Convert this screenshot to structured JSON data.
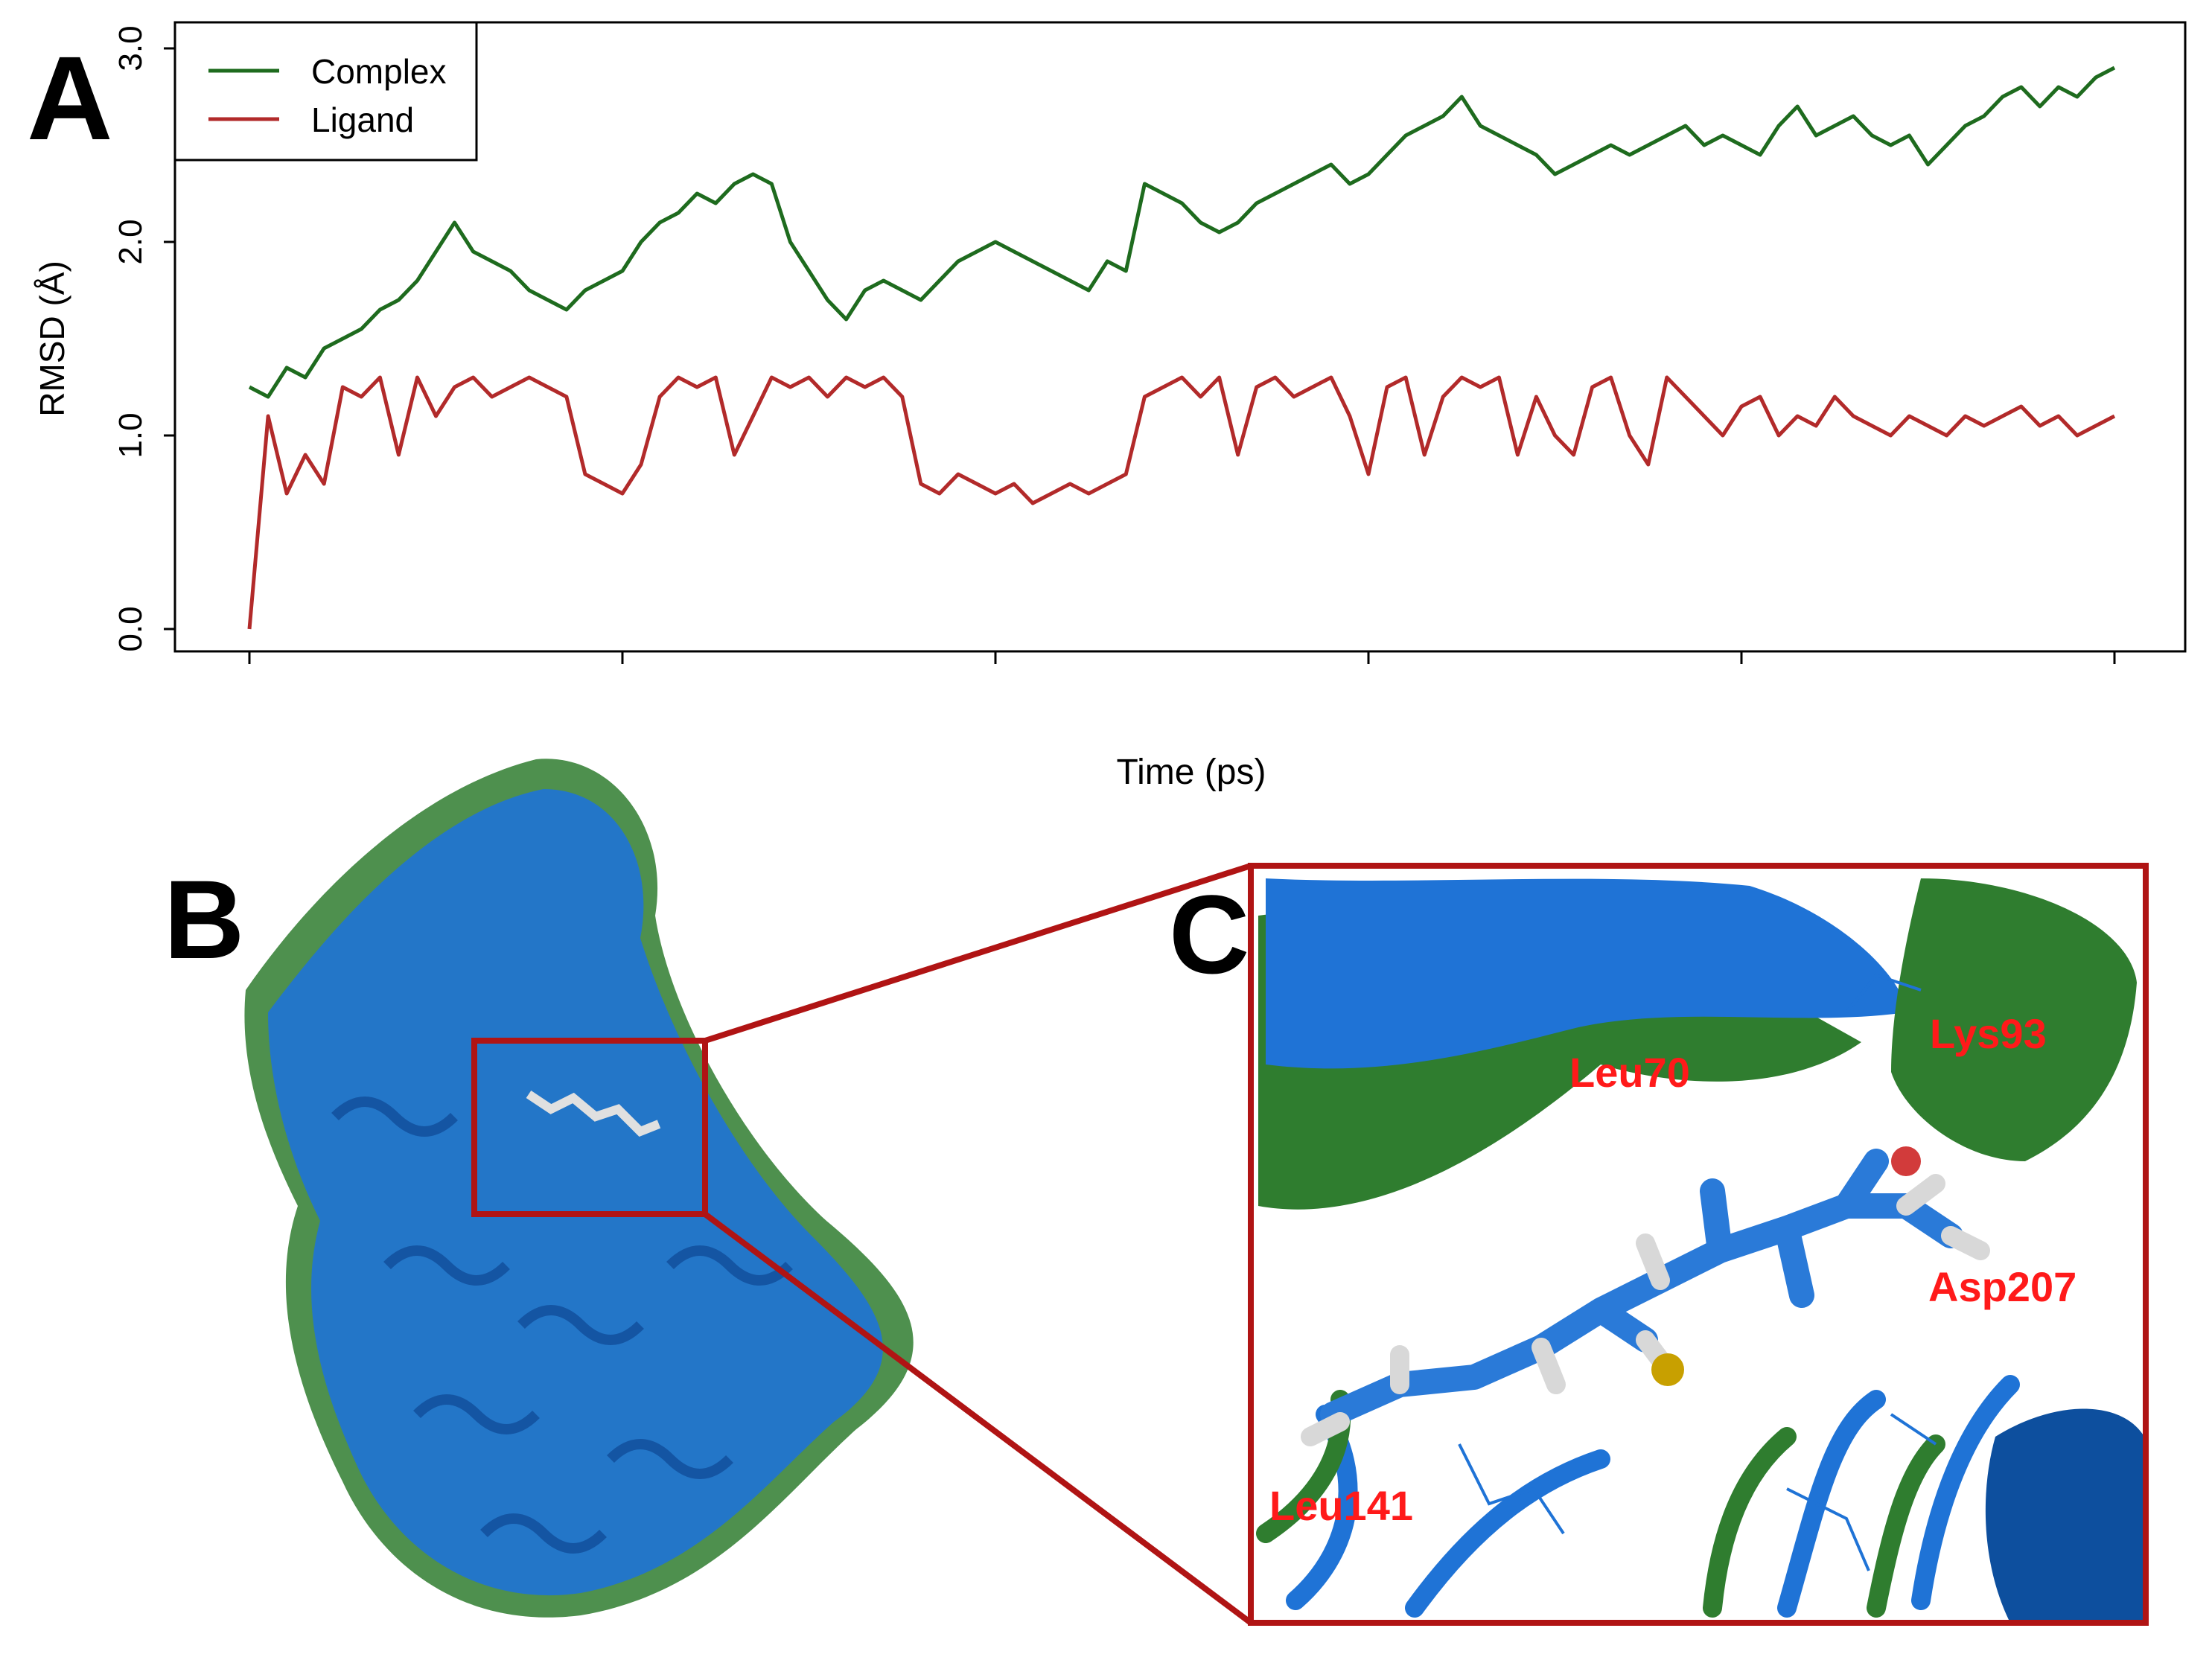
{
  "panels": {
    "a": "A",
    "b": "B",
    "c": "C"
  },
  "chart_data": {
    "type": "line",
    "xlabel": "Time (ps)",
    "ylabel": "RMSD (Å)",
    "xlim": [
      0,
      5000
    ],
    "ylim": [
      0.0,
      3.0
    ],
    "x_ticks": [
      "0",
      "1000",
      "2000",
      "3000",
      "4000",
      "5000"
    ],
    "y_ticks": [
      "0.0",
      "1.0",
      "2.0",
      "3.0"
    ],
    "grid": false,
    "legend_position": "top-left",
    "series": [
      {
        "name": "Complex",
        "color": "#1e6b1e",
        "x": [
          0,
          50,
          100,
          150,
          200,
          250,
          300,
          350,
          400,
          450,
          500,
          550,
          600,
          650,
          700,
          750,
          800,
          850,
          900,
          950,
          1000,
          1050,
          1100,
          1150,
          1200,
          1250,
          1300,
          1350,
          1400,
          1450,
          1500,
          1550,
          1600,
          1650,
          1700,
          1750,
          1800,
          1850,
          1900,
          1950,
          2000,
          2050,
          2100,
          2150,
          2200,
          2250,
          2300,
          2350,
          2400,
          2450,
          2500,
          2550,
          2600,
          2650,
          2700,
          2750,
          2800,
          2850,
          2900,
          2950,
          3000,
          3050,
          3100,
          3150,
          3200,
          3250,
          3300,
          3350,
          3400,
          3450,
          3500,
          3550,
          3600,
          3650,
          3700,
          3750,
          3800,
          3850,
          3900,
          3950,
          4000,
          4050,
          4100,
          4150,
          4200,
          4250,
          4300,
          4350,
          4400,
          4450,
          4500,
          4550,
          4600,
          4650,
          4700,
          4750,
          4800,
          4850,
          4900,
          4950,
          5000
        ],
        "y": [
          1.25,
          1.2,
          1.35,
          1.3,
          1.45,
          1.5,
          1.55,
          1.65,
          1.7,
          1.8,
          1.95,
          2.1,
          1.95,
          1.9,
          1.85,
          1.75,
          1.7,
          1.65,
          1.75,
          1.8,
          1.85,
          2.0,
          2.1,
          2.15,
          2.25,
          2.2,
          2.3,
          2.35,
          2.3,
          2.0,
          1.85,
          1.7,
          1.6,
          1.75,
          1.8,
          1.75,
          1.7,
          1.8,
          1.9,
          1.95,
          2.0,
          1.95,
          1.9,
          1.85,
          1.8,
          1.75,
          1.9,
          1.85,
          2.3,
          2.25,
          2.2,
          2.1,
          2.05,
          2.1,
          2.2,
          2.25,
          2.3,
          2.35,
          2.4,
          2.3,
          2.35,
          2.45,
          2.55,
          2.6,
          2.65,
          2.75,
          2.6,
          2.55,
          2.5,
          2.45,
          2.35,
          2.4,
          2.45,
          2.5,
          2.45,
          2.5,
          2.55,
          2.6,
          2.5,
          2.55,
          2.5,
          2.45,
          2.6,
          2.7,
          2.55,
          2.6,
          2.65,
          2.55,
          2.5,
          2.55,
          2.4,
          2.5,
          2.6,
          2.65,
          2.75,
          2.8,
          2.7,
          2.8,
          2.75,
          2.85,
          2.9
        ]
      },
      {
        "name": "Ligand",
        "color": "#b22a2a",
        "x": [
          0,
          50,
          100,
          150,
          200,
          250,
          300,
          350,
          400,
          450,
          500,
          550,
          600,
          650,
          700,
          750,
          800,
          850,
          900,
          950,
          1000,
          1050,
          1100,
          1150,
          1200,
          1250,
          1300,
          1350,
          1400,
          1450,
          1500,
          1550,
          1600,
          1650,
          1700,
          1750,
          1800,
          1850,
          1900,
          1950,
          2000,
          2050,
          2100,
          2150,
          2200,
          2250,
          2300,
          2350,
          2400,
          2450,
          2500,
          2550,
          2600,
          2650,
          2700,
          2750,
          2800,
          2850,
          2900,
          2950,
          3000,
          3050,
          3100,
          3150,
          3200,
          3250,
          3300,
          3350,
          3400,
          3450,
          3500,
          3550,
          3600,
          3650,
          3700,
          3750,
          3800,
          3850,
          3900,
          3950,
          4000,
          4050,
          4100,
          4150,
          4200,
          4250,
          4300,
          4350,
          4400,
          4450,
          4500,
          4550,
          4600,
          4650,
          4700,
          4750,
          4800,
          4850,
          4900,
          4950,
          5000
        ],
        "y": [
          0.0,
          1.1,
          0.7,
          0.9,
          0.75,
          1.25,
          1.2,
          1.3,
          0.9,
          1.3,
          1.1,
          1.25,
          1.3,
          1.2,
          1.25,
          1.3,
          1.25,
          1.2,
          0.8,
          0.75,
          0.7,
          0.85,
          1.2,
          1.3,
          1.25,
          1.3,
          0.9,
          1.1,
          1.3,
          1.25,
          1.3,
          1.2,
          1.3,
          1.25,
          1.3,
          1.2,
          0.75,
          0.7,
          0.8,
          0.75,
          0.7,
          0.75,
          0.65,
          0.7,
          0.75,
          0.7,
          0.75,
          0.8,
          1.2,
          1.25,
          1.3,
          1.2,
          1.3,
          0.9,
          1.25,
          1.3,
          1.2,
          1.25,
          1.3,
          1.1,
          0.8,
          1.25,
          1.3,
          0.9,
          1.2,
          1.3,
          1.25,
          1.3,
          0.9,
          1.2,
          1.0,
          0.9,
          1.25,
          1.3,
          1.0,
          0.85,
          1.3,
          1.2,
          1.1,
          1.0,
          1.15,
          1.2,
          1.0,
          1.1,
          1.05,
          1.2,
          1.1,
          1.05,
          1.0,
          1.1,
          1.05,
          1.0,
          1.1,
          1.05,
          1.1,
          1.15,
          1.05,
          1.1,
          1.0,
          1.05,
          1.1
        ]
      }
    ]
  },
  "colors": {
    "protein_blue": "#1f73d6",
    "protein_green": "#2f7d2f",
    "frame_red": "#b01414",
    "residue_label": "#ff1a1a"
  },
  "residue_labels": {
    "lys93": "Lys93",
    "leu70": "Leu70",
    "asp207": "Asp207",
    "leu141": "Leu141"
  }
}
